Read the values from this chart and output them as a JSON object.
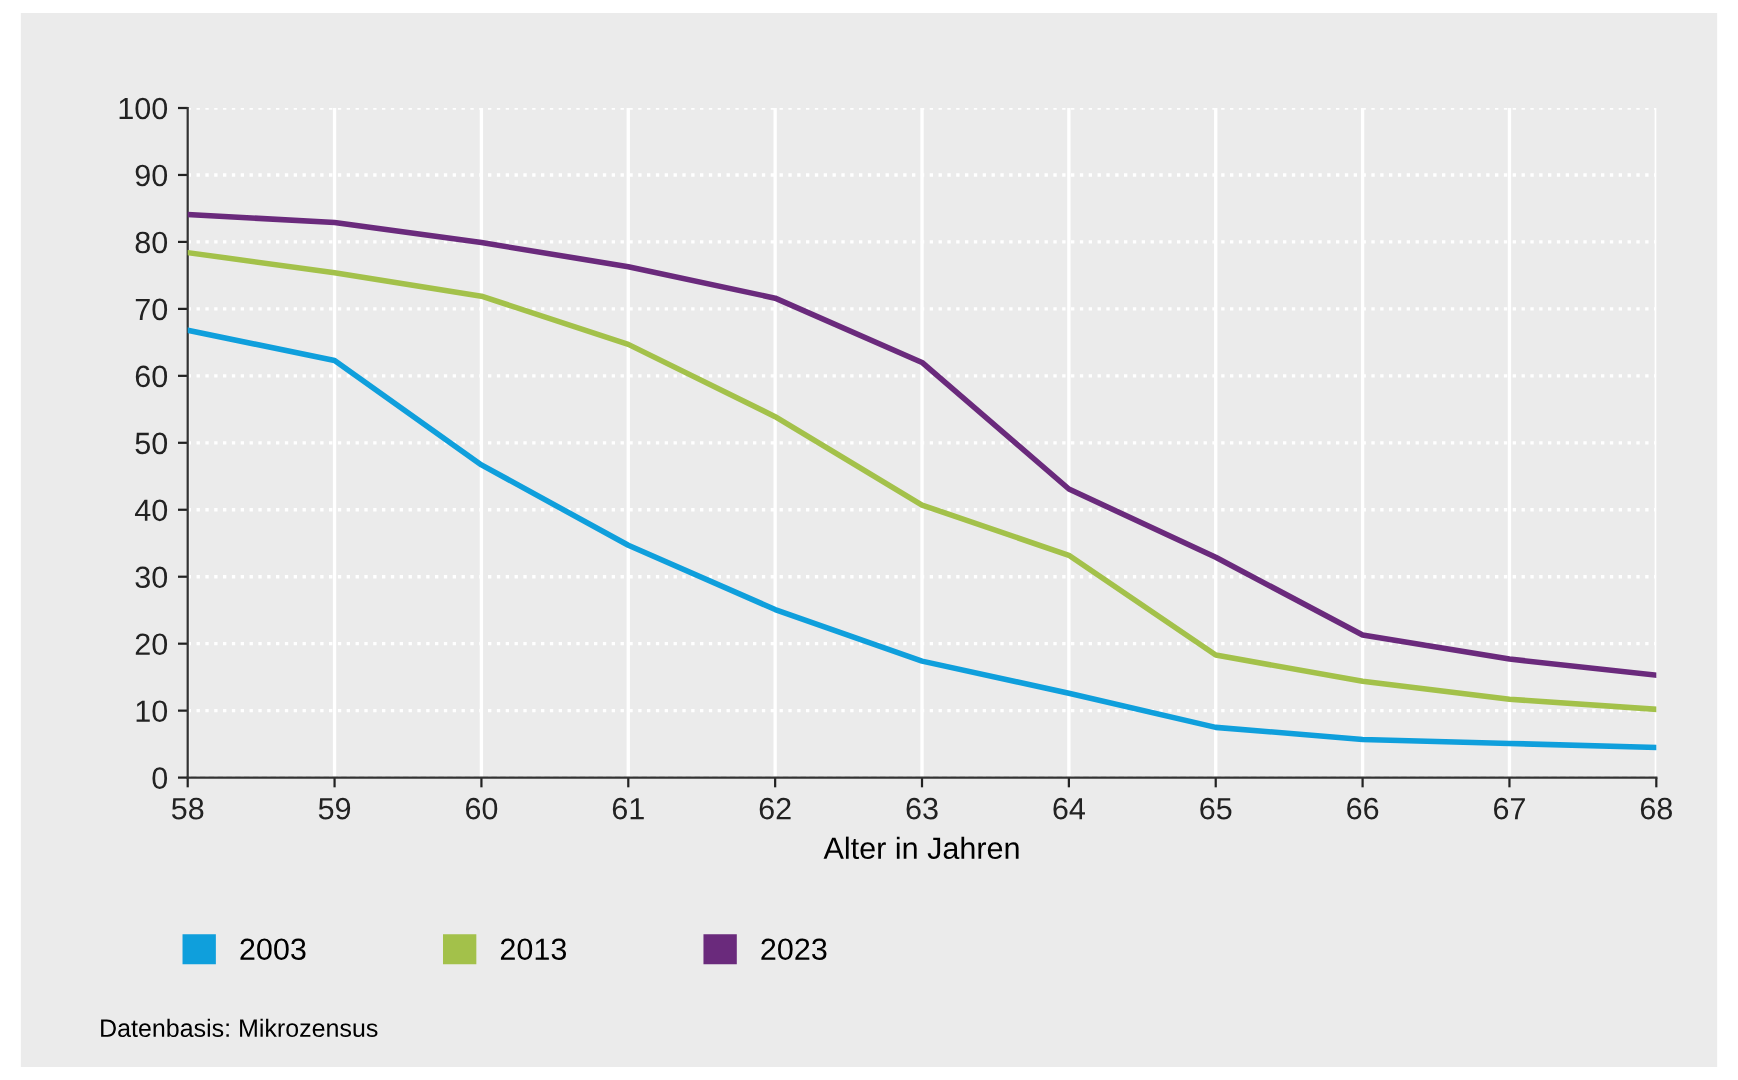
{
  "chart_data": {
    "type": "line",
    "xlabel": "Alter in Jahren",
    "x": [
      58,
      59,
      60,
      61,
      62,
      63,
      64,
      65,
      66,
      67,
      68
    ],
    "series": [
      {
        "name": "2003",
        "color": "#0f9fdc",
        "values": [
          66.8,
          62.3,
          46.7,
          34.7,
          25.1,
          17.4,
          12.6,
          7.5,
          5.7,
          5.1,
          4.5
        ]
      },
      {
        "name": "2013",
        "color": "#a3c14a",
        "values": [
          78.4,
          75.4,
          71.9,
          64.7,
          53.9,
          40.7,
          33.2,
          18.3,
          14.4,
          11.7,
          10.2
        ]
      },
      {
        "name": "2023",
        "color": "#6a2a7c",
        "values": [
          84.1,
          82.9,
          79.9,
          76.3,
          71.6,
          62.0,
          43.1,
          32.9,
          21.3,
          17.7,
          15.3
        ]
      }
    ],
    "xlim": [
      58,
      68
    ],
    "xticks": [
      58,
      59,
      60,
      61,
      62,
      63,
      64,
      65,
      66,
      67,
      68
    ],
    "ylim": [
      0,
      100
    ],
    "yticks": [
      0,
      10,
      20,
      30,
      40,
      50,
      60,
      70,
      80,
      90,
      100
    ],
    "grid": true,
    "legend": "bottom left",
    "marker": "none",
    "line_style": "solid",
    "annotations": [
      "Datenbasis: Mikrozensus"
    ]
  }
}
